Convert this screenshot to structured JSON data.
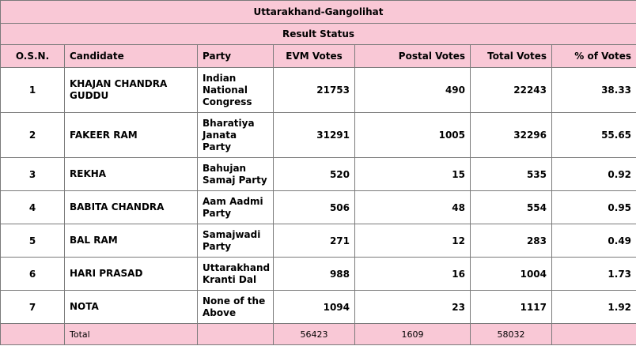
{
  "title": "Uttarakhand-Gangolihat",
  "subtitle": "Result Status",
  "columns": [
    "O.S.N.",
    "Candidate",
    "Party",
    "EVM Votes",
    "Postal Votes",
    "Total Votes",
    "% of Votes"
  ],
  "rows": [
    {
      "osn": "1",
      "candidate": "KHAJAN CHANDRA GUDDU",
      "party": "Indian National Congress",
      "evm": "21753",
      "postal": "490",
      "total": "22243",
      "pct": "38.33"
    },
    {
      "osn": "2",
      "candidate": "FAKEER RAM",
      "party": "Bharatiya Janata Party",
      "evm": "31291",
      "postal": "1005",
      "total": "32296",
      "pct": "55.65"
    },
    {
      "osn": "3",
      "candidate": "REKHA",
      "party": "Bahujan Samaj Party",
      "evm": "520",
      "postal": "15",
      "total": "535",
      "pct": "0.92"
    },
    {
      "osn": "4",
      "candidate": "BABITA CHANDRA",
      "party": "Aam Aadmi Party",
      "evm": "506",
      "postal": "48",
      "total": "554",
      "pct": "0.95"
    },
    {
      "osn": "5",
      "candidate": "BAL RAM",
      "party": "Samajwadi Party",
      "evm": "271",
      "postal": "12",
      "total": "283",
      "pct": "0.49"
    },
    {
      "osn": "6",
      "candidate": "HARI PRASAD",
      "party": "Uttarakhand Kranti Dal",
      "evm": "988",
      "postal": "16",
      "total": "1004",
      "pct": "1.73"
    },
    {
      "osn": "7",
      "candidate": "NOTA",
      "party": "None of the Above",
      "evm": "1094",
      "postal": "23",
      "total": "1117",
      "pct": "1.92"
    }
  ],
  "totals": {
    "label": "Total",
    "evm": "56423",
    "postal": "1609",
    "total": "58032"
  }
}
